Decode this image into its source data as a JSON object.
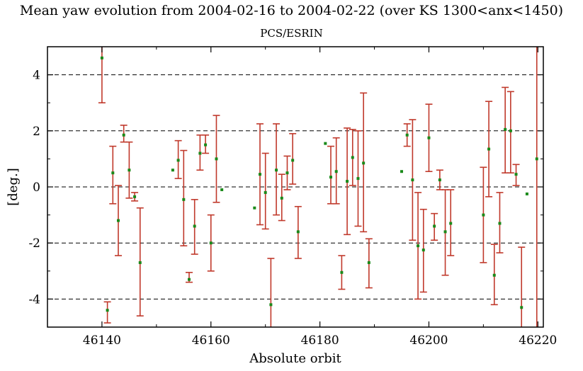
{
  "chart_data": {
    "type": "scatter",
    "title": "Mean yaw evolution from 2004-02-16 to 2004-02-22 (over KS 1300<anx<1450)",
    "subtitle": "PCS/ESRIN",
    "xlabel": "Absolute orbit",
    "ylabel": "[deg.]",
    "xlim": [
      46130,
      46221
    ],
    "ylim": [
      -5,
      5
    ],
    "xticks": [
      46140,
      46160,
      46180,
      46200,
      46220
    ],
    "yticks": [
      -4,
      -2,
      0,
      2,
      4
    ],
    "grid": "dashed horizontal at y ticks",
    "colors": {
      "marker": "#1a8a1a",
      "errorbar": "#c0392b",
      "grid": "#000000"
    },
    "points": [
      {
        "x": 46140,
        "y": 4.6,
        "lo": 3.0,
        "hi": 5.0
      },
      {
        "x": 46141,
        "y": -4.4,
        "lo": -4.85,
        "hi": -4.1
      },
      {
        "x": 46142,
        "y": 0.5,
        "lo": -0.6,
        "hi": 1.45
      },
      {
        "x": 46143,
        "y": -1.2,
        "lo": -2.45,
        "hi": 0.05
      },
      {
        "x": 46144,
        "y": 1.85,
        "lo": 1.6,
        "hi": 2.2
      },
      {
        "x": 46145,
        "y": 0.6,
        "lo": -0.4,
        "hi": 1.6
      },
      {
        "x": 46146,
        "y": -0.35,
        "lo": -0.5,
        "hi": -0.2
      },
      {
        "x": 46147,
        "y": -2.7,
        "lo": -4.6,
        "hi": -0.75
      },
      {
        "x": 46153,
        "y": 0.6
      },
      {
        "x": 46154,
        "y": 0.95,
        "lo": 0.3,
        "hi": 1.65
      },
      {
        "x": 46155,
        "y": -0.45,
        "lo": -2.1,
        "hi": 1.3
      },
      {
        "x": 46156,
        "y": -3.3,
        "lo": -3.4,
        "hi": -3.05
      },
      {
        "x": 46157,
        "y": -1.4,
        "lo": -2.4,
        "hi": -0.45
      },
      {
        "x": 46158,
        "y": 1.2,
        "lo": 0.6,
        "hi": 1.85
      },
      {
        "x": 46159,
        "y": 1.5,
        "lo": 1.2,
        "hi": 1.85
      },
      {
        "x": 46160,
        "y": -2.0,
        "lo": -3.0,
        "hi": -1.0
      },
      {
        "x": 46161,
        "y": 1.0,
        "lo": -0.55,
        "hi": 2.55
      },
      {
        "x": 46162,
        "y": -0.1
      },
      {
        "x": 46168,
        "y": -0.75
      },
      {
        "x": 46169,
        "y": 0.45,
        "lo": -1.35,
        "hi": 2.25
      },
      {
        "x": 46170,
        "y": -0.2,
        "lo": -1.5,
        "hi": 1.2
      },
      {
        "x": 46171,
        "y": -4.2,
        "lo": -5.0,
        "hi": -2.55
      },
      {
        "x": 46172,
        "y": 0.6,
        "lo": -1.0,
        "hi": 2.25
      },
      {
        "x": 46173,
        "y": -0.4,
        "lo": -1.2,
        "hi": 0.45
      },
      {
        "x": 46174,
        "y": 0.5,
        "lo": -0.1,
        "hi": 1.1
      },
      {
        "x": 46175,
        "y": 0.95,
        "lo": 0.1,
        "hi": 1.9
      },
      {
        "x": 46176,
        "y": -1.6,
        "lo": -2.55,
        "hi": -0.7
      },
      {
        "x": 46181,
        "y": 1.55
      },
      {
        "x": 46182,
        "y": 0.35,
        "lo": -0.6,
        "hi": 1.45
      },
      {
        "x": 46183,
        "y": 0.55,
        "lo": -0.6,
        "hi": 1.75
      },
      {
        "x": 46184,
        "y": -3.05,
        "lo": -3.65,
        "hi": -2.45
      },
      {
        "x": 46185,
        "y": 0.2,
        "lo": -1.7,
        "hi": 2.1
      },
      {
        "x": 46186,
        "y": 1.05,
        "lo": 0.05,
        "hi": 2.05
      },
      {
        "x": 46187,
        "y": 0.3,
        "lo": -1.4,
        "hi": 2.0
      },
      {
        "x": 46188,
        "y": 0.85,
        "lo": -1.6,
        "hi": 3.35
      },
      {
        "x": 46189,
        "y": -2.7,
        "lo": -3.6,
        "hi": -1.85
      },
      {
        "x": 46195,
        "y": 0.55
      },
      {
        "x": 46196,
        "y": 1.85,
        "lo": 1.45,
        "hi": 2.25
      },
      {
        "x": 46197,
        "y": 0.25,
        "lo": -1.9,
        "hi": 2.4
      },
      {
        "x": 46198,
        "y": -2.1,
        "lo": -4.0,
        "hi": -0.2
      },
      {
        "x": 46199,
        "y": -2.25,
        "lo": -3.75,
        "hi": -0.8
      },
      {
        "x": 46200,
        "y": 1.75,
        "lo": 0.55,
        "hi": 2.95
      },
      {
        "x": 46201,
        "y": -1.4,
        "lo": -1.9,
        "hi": -0.95
      },
      {
        "x": 46202,
        "y": 0.25,
        "lo": -0.1,
        "hi": 0.6
      },
      {
        "x": 46203,
        "y": -1.6,
        "lo": -3.15,
        "hi": -0.1
      },
      {
        "x": 46204,
        "y": -1.3,
        "lo": -2.45,
        "hi": -0.1
      },
      {
        "x": 46210,
        "y": -1.0,
        "lo": -2.7,
        "hi": 0.7
      },
      {
        "x": 46211,
        "y": 1.35,
        "lo": -0.35,
        "hi": 3.05
      },
      {
        "x": 46212,
        "y": -3.15,
        "lo": -4.2,
        "hi": -2.05
      },
      {
        "x": 46213,
        "y": -1.3,
        "lo": -2.35,
        "hi": -0.2
      },
      {
        "x": 46214,
        "y": 2.05,
        "lo": 0.5,
        "hi": 3.55
      },
      {
        "x": 46215,
        "y": 2.0,
        "lo": 0.5,
        "hi": 3.4
      },
      {
        "x": 46216,
        "y": 0.45,
        "lo": 0.05,
        "hi": 0.8
      },
      {
        "x": 46217,
        "y": -4.3,
        "lo": -5.0,
        "hi": -2.15
      },
      {
        "x": 46218,
        "y": -0.25
      },
      {
        "x": 46219.8,
        "y": 1.0,
        "lo": -5.0,
        "hi": 5.0
      }
    ]
  }
}
